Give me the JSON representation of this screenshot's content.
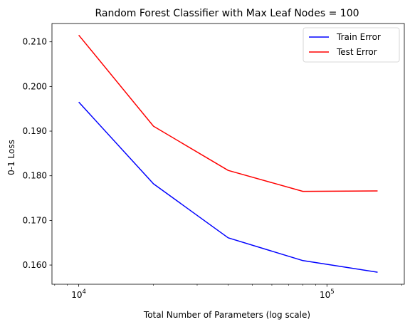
{
  "chart_data": {
    "type": "line",
    "title": "Random Forest Classifier with Max Leaf Nodes = 100",
    "xlabel": "Total Number of Parameters (log scale)",
    "ylabel": "0-1 Loss",
    "xscale": "log",
    "x": [
      10000,
      20000,
      40000,
      80000,
      160000
    ],
    "xlim": [
      7800,
      205000
    ],
    "ylim": [
      0.1557,
      0.2141
    ],
    "xticks": [
      {
        "value": 10000,
        "base": "10",
        "exp": "4"
      },
      {
        "value": 100000,
        "base": "10",
        "exp": "5"
      }
    ],
    "yticks": [
      {
        "value": 0.16,
        "label": "0.160"
      },
      {
        "value": 0.17,
        "label": "0.170"
      },
      {
        "value": 0.18,
        "label": "0.180"
      },
      {
        "value": 0.19,
        "label": "0.190"
      },
      {
        "value": 0.2,
        "label": "0.200"
      },
      {
        "value": 0.21,
        "label": "0.210"
      }
    ],
    "series": [
      {
        "name": "Train Error",
        "color": "#0000ff",
        "values": [
          0.1965,
          0.1782,
          0.1661,
          0.161,
          0.1584
        ]
      },
      {
        "name": "Test Error",
        "color": "#ff0000",
        "values": [
          0.2115,
          0.1911,
          0.1812,
          0.1765,
          0.1766
        ]
      }
    ],
    "grid": false,
    "legend": "top-right"
  }
}
